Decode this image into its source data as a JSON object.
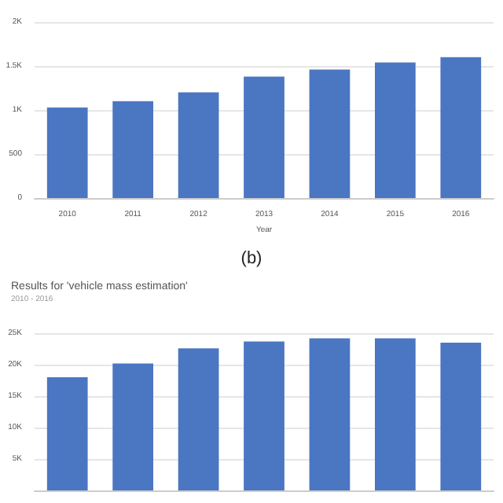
{
  "chart_data": [
    {
      "type": "bar",
      "xlabel": "Year",
      "categories": [
        "2010",
        "2011",
        "2012",
        "2013",
        "2014",
        "2015",
        "2016"
      ],
      "values": [
        1030,
        1100,
        1200,
        1380,
        1460,
        1540,
        1600
      ],
      "color": "#4a76c2",
      "ylim": [
        0,
        2000
      ],
      "yticks": [
        0,
        500,
        {
          "value": 1000,
          "label": "1K"
        },
        {
          "value": 1500,
          "label": "1.5K"
        },
        {
          "value": 2000,
          "label": "2K"
        }
      ],
      "grid": "y",
      "annotations": [
        "(b)"
      ]
    },
    {
      "type": "bar",
      "title": "Results for 'vehicle mass estimation'",
      "subtitle": "2010 - 2016",
      "categories": [
        null,
        null,
        null,
        null,
        null,
        null,
        null
      ],
      "values": [
        18000,
        20200,
        22600,
        23700,
        24200,
        24200,
        23500
      ],
      "color": "#4a76c2",
      "ylim": [
        0,
        25000
      ],
      "yticks": [
        {
          "value": 5000,
          "label": "5K"
        },
        {
          "value": 10000,
          "label": "10K"
        },
        {
          "value": 15000,
          "label": "15K"
        },
        {
          "value": 20000,
          "label": "20K"
        },
        {
          "value": 25000,
          "label": "25K"
        }
      ],
      "grid": "y"
    }
  ]
}
